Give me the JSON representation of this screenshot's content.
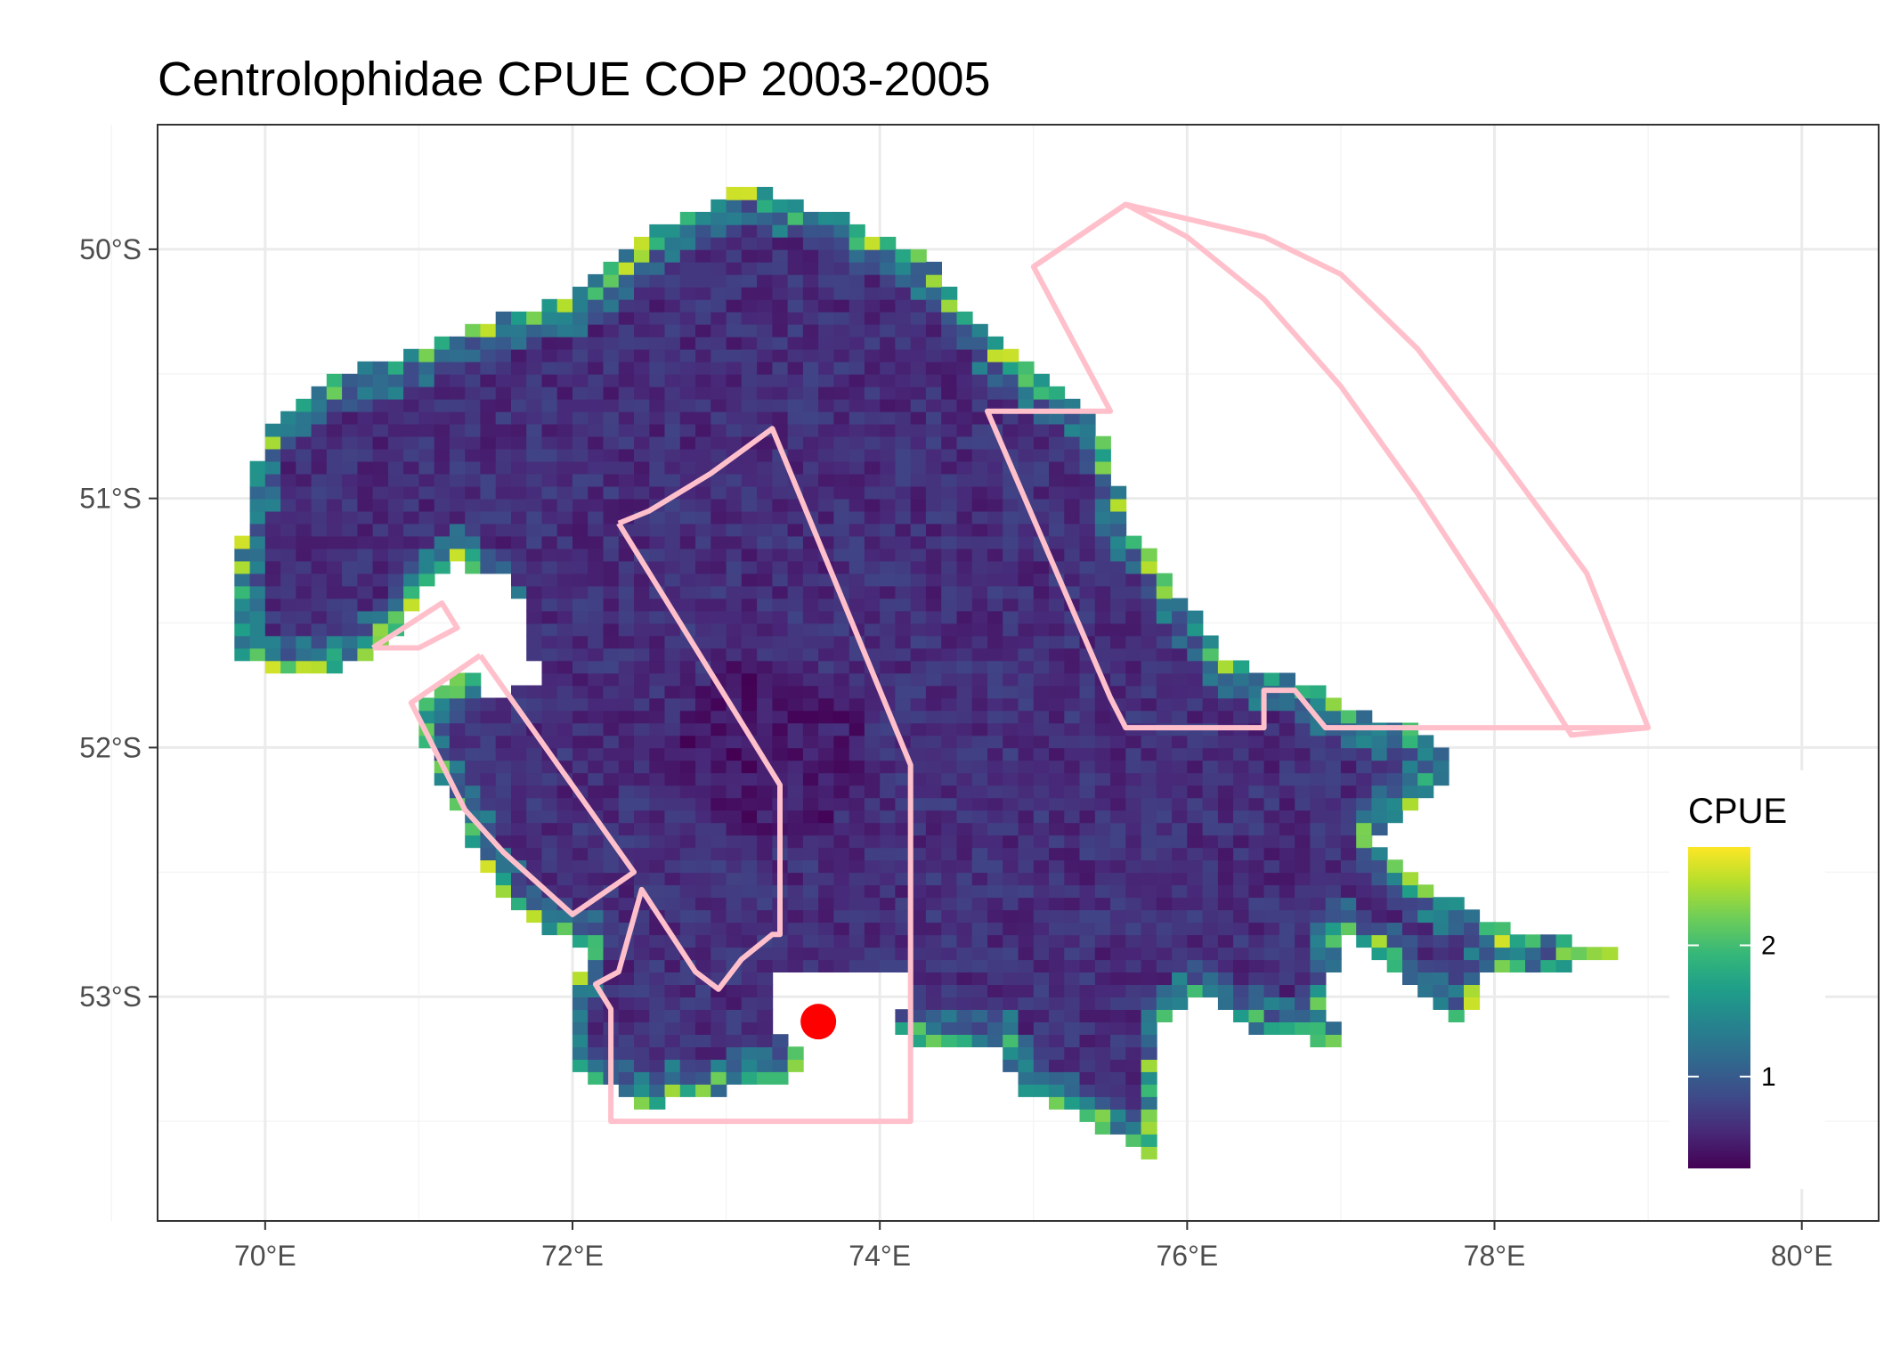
{
  "chart_data": {
    "type": "heatmap",
    "title": "Centrolophidae  CPUE COP 2003-2005",
    "xlabel": "",
    "ylabel": "",
    "x_ticks": [
      "70°E",
      "72°E",
      "74°E",
      "76°E",
      "78°E",
      "80°E"
    ],
    "x_tick_values": [
      70,
      72,
      74,
      76,
      78,
      80
    ],
    "y_ticks": [
      "50°S",
      "51°S",
      "52°S",
      "53°S"
    ],
    "y_tick_values": [
      -50,
      -51,
      -52,
      -53
    ],
    "xlim": [
      69.3,
      80.5
    ],
    "ylim": [
      -53.9,
      -49.5
    ],
    "grid": true,
    "color_scale": {
      "name": "CPUE",
      "palette": "viridis",
      "colors": [
        "#440154",
        "#482878",
        "#3E4A89",
        "#31688E",
        "#26828E",
        "#1F9E89",
        "#35B779",
        "#6DCD59",
        "#B4DE2C",
        "#FDE725"
      ],
      "range": [
        0.3,
        2.75
      ],
      "breaks": [
        1,
        2
      ],
      "break_labels": [
        "1",
        "2"
      ]
    },
    "legend_position": "right",
    "point_marker": {
      "lon": 73.6,
      "lat": -53.1,
      "color": "#FF0000"
    },
    "polygon_color": "#FFC0CB",
    "polygons": [
      [
        [
          75.0,
          -50.07
        ],
        [
          75.6,
          -49.82
        ],
        [
          76.0,
          -49.95
        ],
        [
          76.5,
          -50.2
        ],
        [
          77.0,
          -50.55
        ],
        [
          77.5,
          -50.98
        ],
        [
          78.0,
          -51.45
        ],
        [
          78.5,
          -51.95
        ],
        [
          79.0,
          -51.92
        ],
        [
          78.6,
          -51.3
        ],
        [
          78.0,
          -50.8
        ],
        [
          77.5,
          -50.4
        ],
        [
          77.0,
          -50.1
        ],
        [
          76.5,
          -49.95
        ],
        [
          75.6,
          -49.82
        ]
      ],
      [
        [
          75.6,
          -49.82
        ],
        [
          75.0,
          -50.07
        ],
        [
          75.5,
          -50.65
        ],
        [
          74.7,
          -50.65
        ],
        [
          75.5,
          -51.8
        ],
        [
          75.6,
          -51.92
        ],
        [
          76.5,
          -51.92
        ],
        [
          76.5,
          -51.77
        ],
        [
          76.7,
          -51.77
        ],
        [
          76.9,
          -51.92
        ],
        [
          79.0,
          -51.92
        ]
      ],
      [
        [
          72.3,
          -51.1
        ],
        [
          72.5,
          -51.05
        ],
        [
          72.9,
          -50.9
        ],
        [
          73.3,
          -50.72
        ],
        [
          74.2,
          -52.07
        ],
        [
          74.2,
          -53.5
        ],
        [
          72.25,
          -53.5
        ],
        [
          72.25,
          -53.05
        ],
        [
          72.15,
          -52.95
        ],
        [
          72.3,
          -52.9
        ],
        [
          72.45,
          -52.57
        ],
        [
          72.8,
          -52.9
        ],
        [
          72.95,
          -52.97
        ],
        [
          73.1,
          -52.85
        ],
        [
          73.3,
          -52.75
        ],
        [
          73.35,
          -52.75
        ],
        [
          73.35,
          -52.15
        ],
        [
          72.3,
          -51.1
        ]
      ],
      [
        [
          70.7,
          -51.6
        ],
        [
          71.15,
          -51.42
        ],
        [
          71.25,
          -51.52
        ],
        [
          71.0,
          -51.6
        ],
        [
          70.7,
          -51.6
        ]
      ],
      [
        [
          71.4,
          -51.63
        ],
        [
          70.95,
          -51.82
        ],
        [
          71.3,
          -52.25
        ],
        [
          71.55,
          -52.42
        ],
        [
          72.0,
          -52.67
        ],
        [
          72.4,
          -52.5
        ],
        [
          71.4,
          -51.63
        ]
      ]
    ]
  }
}
